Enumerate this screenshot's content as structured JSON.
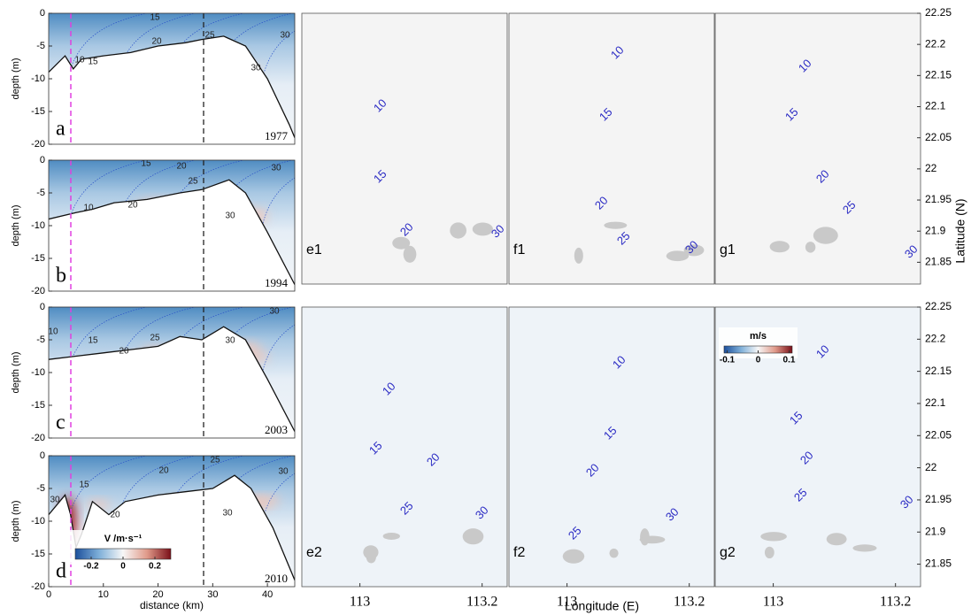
{
  "chart_data": [
    {
      "type": "profile",
      "label": "a",
      "year": "1977",
      "ylabel": "depth (m)",
      "xlim": [
        0,
        45
      ],
      "ylim": [
        -20,
        0
      ],
      "yticks": [
        0,
        -5,
        -10,
        -15,
        -20
      ],
      "x": [
        0,
        3,
        4.5,
        6,
        10,
        15,
        20,
        25,
        28,
        32,
        36,
        40,
        44,
        45
      ],
      "y": [
        -9,
        -6.5,
        -8.5,
        -7,
        -6.5,
        -6,
        -5,
        -4.5,
        -4,
        -3.5,
        -5,
        -10,
        -17,
        -19
      ],
      "contour_labels": [
        15,
        20,
        25,
        30,
        30,
        10,
        15
      ]
    },
    {
      "type": "profile",
      "label": "b",
      "year": "1994",
      "ylabel": "depth (m)",
      "xlim": [
        0,
        45
      ],
      "ylim": [
        -20,
        0
      ],
      "yticks": [
        0,
        -5,
        -10,
        -15,
        -20
      ],
      "x": [
        0,
        5,
        8,
        12,
        18,
        24,
        28,
        33,
        36,
        40,
        45
      ],
      "y": [
        -9,
        -8,
        -7.5,
        -6.5,
        -6,
        -5,
        -4.5,
        -3,
        -5,
        -11,
        -19
      ],
      "contour_labels": [
        10,
        15,
        20,
        20,
        25,
        30,
        30
      ]
    },
    {
      "type": "profile",
      "label": "c",
      "year": "2003",
      "ylabel": "depth (m)",
      "xlim": [
        0,
        45
      ],
      "ylim": [
        -20,
        0
      ],
      "yticks": [
        0,
        -5,
        -10,
        -15,
        -20
      ],
      "x": [
        0,
        5,
        10,
        15,
        20,
        24,
        28,
        32,
        36,
        40,
        45
      ],
      "y": [
        -8,
        -7.5,
        -7,
        -6.5,
        -6,
        -4.5,
        -5,
        -3,
        -5,
        -11,
        -19
      ],
      "contour_labels": [
        10,
        15,
        20,
        25,
        30,
        30
      ]
    },
    {
      "type": "profile",
      "label": "d",
      "year": "2010",
      "ylabel": "depth (m)",
      "xlabel": "distance (km)",
      "xlim": [
        0,
        45
      ],
      "ylim": [
        -20,
        0
      ],
      "yticks": [
        0,
        -5,
        -10,
        -15,
        -20
      ],
      "xticks": [
        0,
        10,
        20,
        30,
        40
      ],
      "x": [
        0,
        3,
        4,
        5,
        6,
        8,
        11,
        14,
        20,
        25,
        30,
        34,
        37,
        41,
        45
      ],
      "y": [
        -9,
        -6,
        -9,
        -14,
        -12,
        -7,
        -9,
        -7,
        -6,
        -5.5,
        -5,
        -3,
        -5,
        -11,
        -19
      ],
      "contour_labels": [
        30,
        15,
        20,
        20,
        25,
        30,
        30
      ],
      "colorbar": {
        "label": "V /m·s⁻¹",
        "clim": [
          -0.3,
          0.3
        ],
        "ticks": [
          -0.2,
          0,
          0.2
        ]
      }
    },
    {
      "type": "map",
      "label": "e1",
      "contour_labels": [
        10,
        15,
        20,
        30
      ]
    },
    {
      "type": "map",
      "label": "f1",
      "contour_labels": [
        10,
        15,
        20,
        25,
        30
      ]
    },
    {
      "type": "map",
      "label": "g1",
      "contour_labels": [
        10,
        15,
        20,
        25,
        30
      ],
      "ylabel": "Latitude (N)",
      "ylim": [
        21.815,
        22.25
      ],
      "yticks": [
        22.25,
        22.2,
        22.15,
        22.1,
        22.05,
        22,
        21.95,
        21.9,
        21.85
      ]
    },
    {
      "type": "map",
      "label": "e2",
      "contour_labels": [
        10,
        15,
        20,
        25,
        30
      ],
      "xlim": [
        112.905,
        113.241
      ],
      "xticks": [
        113,
        113.2
      ]
    },
    {
      "type": "map",
      "label": "f2",
      "contour_labels": [
        10,
        15,
        20,
        25,
        30
      ],
      "xlabel": "Longitude (E)",
      "xlim": [
        112.905,
        113.241
      ],
      "xticks": [
        113,
        113.2
      ]
    },
    {
      "type": "map",
      "label": "g2",
      "contour_labels": [
        10,
        15,
        20,
        25,
        30
      ],
      "xlim": [
        112.905,
        113.241
      ],
      "xticks": [
        113,
        113.2
      ],
      "ylim": [
        21.815,
        22.25
      ],
      "yticks": [
        22.25,
        22.2,
        22.15,
        22.1,
        22.05,
        22,
        21.95,
        21.9,
        21.85
      ],
      "colorbar": {
        "label": "m/s",
        "clim": [
          -0.11,
          0.11
        ],
        "ticks": [
          -0.1,
          0,
          0.1
        ]
      }
    }
  ]
}
